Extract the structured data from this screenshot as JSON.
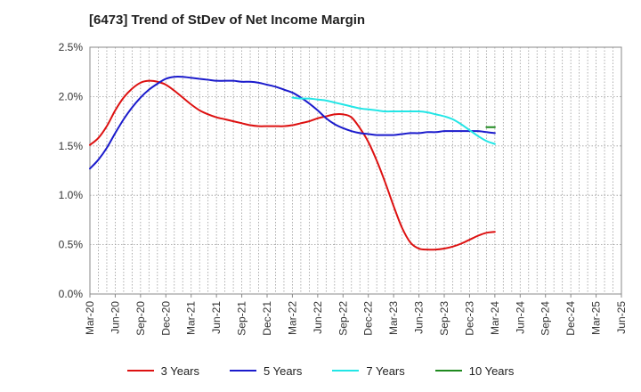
{
  "title": "[6473]  Trend of StDev of Net Income Margin",
  "chart_data": {
    "type": "line",
    "title": "[6473]  Trend of StDev of Net Income Margin",
    "x": [
      "Mar-20",
      "Jun-20",
      "Sep-20",
      "Dec-20",
      "Mar-21",
      "Jun-21",
      "Sep-21",
      "Dec-21",
      "Mar-22",
      "Jun-22",
      "Sep-22",
      "Dec-22",
      "Mar-23",
      "Jun-23",
      "Sep-23",
      "Dec-23",
      "Mar-24",
      "Jun-24",
      "Sep-24",
      "Dec-24",
      "Mar-25",
      "Jun-25"
    ],
    "y_ticks": [
      "0.0%",
      "0.5%",
      "1.0%",
      "1.5%",
      "2.0%",
      "2.5%"
    ],
    "ylim": [
      0,
      2.5
    ],
    "grid": "vertical and horizontal dotted",
    "legend_position": "bottom",
    "series": [
      {
        "name": "3 Years",
        "color": "#dd1111",
        "points": [
          [
            0,
            1.51
          ],
          [
            1,
            1.58
          ],
          [
            2,
            1.7
          ],
          [
            3,
            1.86
          ],
          [
            4,
            1.99
          ],
          [
            5,
            2.08
          ],
          [
            6,
            2.14
          ],
          [
            7,
            2.16
          ],
          [
            8,
            2.15
          ],
          [
            9,
            2.12
          ],
          [
            10,
            2.06
          ],
          [
            11,
            1.99
          ],
          [
            12,
            1.92
          ],
          [
            13,
            1.86
          ],
          [
            14,
            1.82
          ],
          [
            15,
            1.79
          ],
          [
            16,
            1.77
          ],
          [
            17,
            1.75
          ],
          [
            18,
            1.73
          ],
          [
            19,
            1.71
          ],
          [
            20,
            1.7
          ],
          [
            21,
            1.7
          ],
          [
            22,
            1.7
          ],
          [
            23,
            1.7
          ],
          [
            24,
            1.71
          ],
          [
            25,
            1.73
          ],
          [
            26,
            1.75
          ],
          [
            27,
            1.78
          ],
          [
            28,
            1.8
          ],
          [
            29,
            1.82
          ],
          [
            30,
            1.82
          ],
          [
            31,
            1.79
          ],
          [
            32,
            1.68
          ],
          [
            33,
            1.54
          ],
          [
            34,
            1.35
          ],
          [
            35,
            1.13
          ],
          [
            36,
            0.89
          ],
          [
            37,
            0.67
          ],
          [
            38,
            0.52
          ],
          [
            39,
            0.46
          ],
          [
            40,
            0.45
          ],
          [
            41,
            0.45
          ],
          [
            42,
            0.46
          ],
          [
            43,
            0.48
          ],
          [
            44,
            0.51
          ],
          [
            45,
            0.55
          ],
          [
            46,
            0.59
          ],
          [
            47,
            0.62
          ],
          [
            48,
            0.63
          ]
        ]
      },
      {
        "name": "5 Years",
        "color": "#1b1bcc",
        "points": [
          [
            0,
            1.27
          ],
          [
            1,
            1.36
          ],
          [
            2,
            1.48
          ],
          [
            3,
            1.63
          ],
          [
            4,
            1.77
          ],
          [
            5,
            1.89
          ],
          [
            6,
            1.99
          ],
          [
            7,
            2.07
          ],
          [
            8,
            2.13
          ],
          [
            9,
            2.18
          ],
          [
            10,
            2.2
          ],
          [
            11,
            2.2
          ],
          [
            12,
            2.19
          ],
          [
            13,
            2.18
          ],
          [
            14,
            2.17
          ],
          [
            15,
            2.16
          ],
          [
            16,
            2.16
          ],
          [
            17,
            2.16
          ],
          [
            18,
            2.15
          ],
          [
            19,
            2.15
          ],
          [
            20,
            2.14
          ],
          [
            21,
            2.12
          ],
          [
            22,
            2.1
          ],
          [
            23,
            2.07
          ],
          [
            24,
            2.04
          ],
          [
            25,
            1.99
          ],
          [
            26,
            1.93
          ],
          [
            27,
            1.86
          ],
          [
            28,
            1.78
          ],
          [
            29,
            1.72
          ],
          [
            30,
            1.68
          ],
          [
            31,
            1.65
          ],
          [
            32,
            1.63
          ],
          [
            33,
            1.62
          ],
          [
            34,
            1.61
          ],
          [
            35,
            1.61
          ],
          [
            36,
            1.61
          ],
          [
            37,
            1.62
          ],
          [
            38,
            1.63
          ],
          [
            39,
            1.63
          ],
          [
            40,
            1.64
          ],
          [
            41,
            1.64
          ],
          [
            42,
            1.65
          ],
          [
            43,
            1.65
          ],
          [
            44,
            1.65
          ],
          [
            45,
            1.65
          ],
          [
            46,
            1.65
          ],
          [
            47,
            1.64
          ],
          [
            48,
            1.63
          ]
        ]
      },
      {
        "name": "7 Years",
        "color": "#22e6e6",
        "points": [
          [
            24,
            1.99
          ],
          [
            25,
            1.98
          ],
          [
            26,
            1.98
          ],
          [
            27,
            1.97
          ],
          [
            28,
            1.96
          ],
          [
            29,
            1.94
          ],
          [
            30,
            1.92
          ],
          [
            31,
            1.9
          ],
          [
            32,
            1.88
          ],
          [
            33,
            1.87
          ],
          [
            34,
            1.86
          ],
          [
            35,
            1.85
          ],
          [
            36,
            1.85
          ],
          [
            37,
            1.85
          ],
          [
            38,
            1.85
          ],
          [
            39,
            1.85
          ],
          [
            40,
            1.84
          ],
          [
            41,
            1.82
          ],
          [
            42,
            1.8
          ],
          [
            43,
            1.77
          ],
          [
            44,
            1.72
          ],
          [
            45,
            1.66
          ],
          [
            46,
            1.6
          ],
          [
            47,
            1.55
          ],
          [
            48,
            1.52
          ]
        ]
      },
      {
        "name": "10 Years",
        "color": "#1f8a1f",
        "points": [
          [
            47,
            1.69
          ],
          [
            48,
            1.69
          ]
        ]
      }
    ]
  }
}
